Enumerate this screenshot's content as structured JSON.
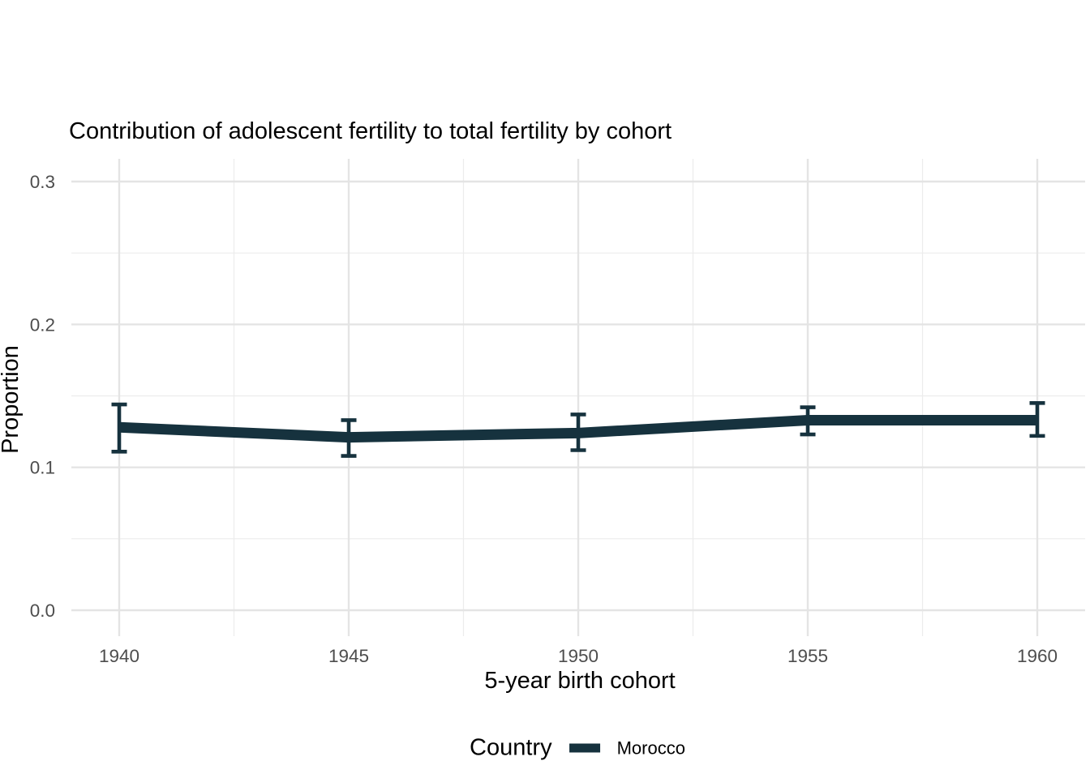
{
  "chart_data": {
    "type": "line",
    "title": "Contribution of adolescent fertility to total fertility by cohort",
    "xlabel": "5-year birth cohort",
    "ylabel": "Proportion",
    "x": [
      1940,
      1945,
      1950,
      1955,
      1960
    ],
    "x_tick_labels": [
      "1940",
      "1945",
      "1950",
      "1955",
      "1960"
    ],
    "y_tick_labels": [
      "0.0",
      "0.1",
      "0.2",
      "0.3"
    ],
    "xlim": [
      1940,
      1960
    ],
    "ylim": [
      0,
      0.3
    ],
    "grid": "major and minor gridlines, light gray on white, no axis lines or ticks",
    "legend": {
      "title": "Country",
      "position": "bottom",
      "entries": [
        {
          "label": "Morocco",
          "color": "#16323e"
        }
      ]
    },
    "series": [
      {
        "name": "Morocco",
        "values": [
          0.128,
          0.121,
          0.124,
          0.133,
          0.133
        ],
        "ci_low": [
          0.111,
          0.108,
          0.112,
          0.123,
          0.122
        ],
        "ci_high": [
          0.144,
          0.133,
          0.137,
          0.142,
          0.145
        ]
      }
    ],
    "colors": {
      "line": "#16323e",
      "grid_major": "#e4e4e4",
      "grid_minor": "#ececec",
      "tick_text": "#4d4d4d",
      "text": "#000000"
    }
  }
}
